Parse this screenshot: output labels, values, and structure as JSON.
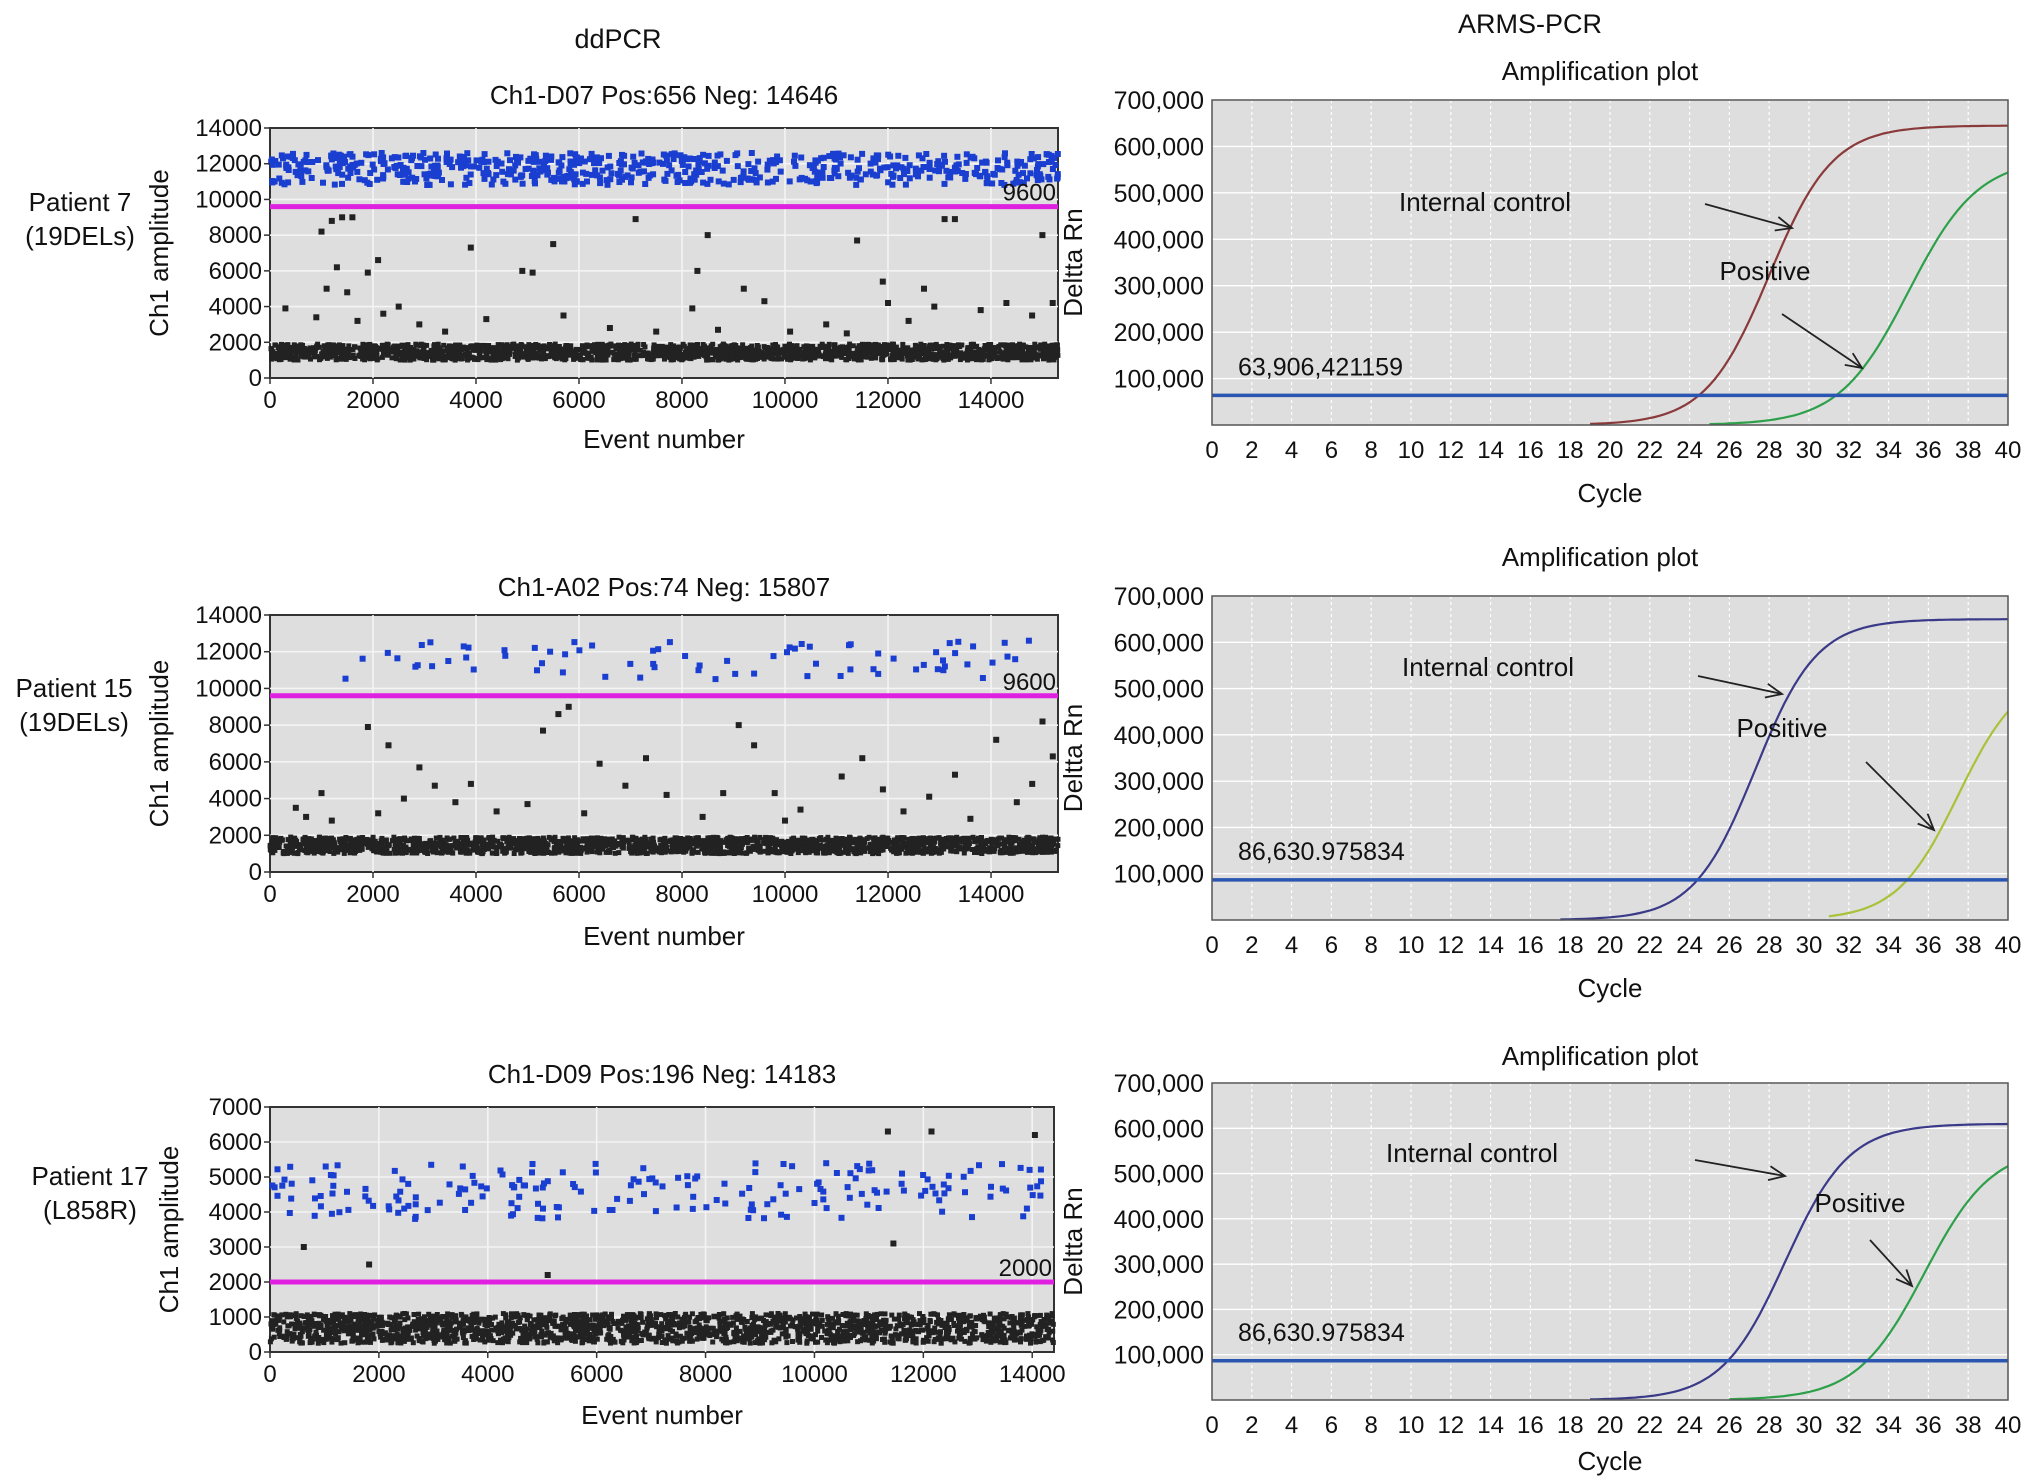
{
  "figure": {
    "left_heading": "ddPCR",
    "right_heading": "ARMS-PCR"
  },
  "colors": {
    "positive_droplet": "#1a3fd0",
    "negative_droplet": "#222222",
    "threshold_ddpcr": "#e020e0",
    "threshold_arms": "#2a55b0",
    "plot_bg": "#dedede",
    "ic_curves": [
      "#8a3a3a",
      "#3a3a88",
      "#3a3a88"
    ],
    "positive_curves": [
      "#2ea04a",
      "#a8c23a",
      "#2ea04a"
    ]
  },
  "chart_data": [
    {
      "type": "scatter",
      "title": "Ch1-D07 Pos:656 Neg: 14646",
      "patient_label": [
        "Patient 7",
        "(19DELs)"
      ],
      "xlabel": "Event number",
      "ylabel": "Ch1 amplitude",
      "xlim": [
        0,
        15302
      ],
      "ylim": [
        0,
        14000
      ],
      "xticks": [
        0,
        2000,
        4000,
        6000,
        8000,
        10000,
        12000,
        14000
      ],
      "yticks": [
        0,
        2000,
        4000,
        6000,
        8000,
        10000,
        12000,
        14000
      ],
      "threshold": 9600,
      "threshold_label": "9600",
      "positive_count": 656,
      "negative_count": 14646,
      "positive_band": [
        10800,
        12600
      ],
      "negative_band": [
        1000,
        1900
      ],
      "rain_points": [
        [
          300,
          3900
        ],
        [
          900,
          3400
        ],
        [
          1000,
          8200
        ],
        [
          1100,
          5000
        ],
        [
          1200,
          8800
        ],
        [
          1300,
          6200
        ],
        [
          1400,
          9000
        ],
        [
          1500,
          4800
        ],
        [
          1600,
          9000
        ],
        [
          1700,
          3200
        ],
        [
          1900,
          5900
        ],
        [
          2100,
          6600
        ],
        [
          2200,
          3600
        ],
        [
          2500,
          4000
        ],
        [
          2900,
          3000
        ],
        [
          3400,
          2600
        ],
        [
          3900,
          7300
        ],
        [
          4200,
          3300
        ],
        [
          4900,
          6000
        ],
        [
          5100,
          5900
        ],
        [
          5500,
          7500
        ],
        [
          5700,
          3500
        ],
        [
          6600,
          2800
        ],
        [
          7100,
          8900
        ],
        [
          7500,
          2600
        ],
        [
          8200,
          3900
        ],
        [
          8300,
          6000
        ],
        [
          8500,
          8000
        ],
        [
          8700,
          2700
        ],
        [
          9200,
          5000
        ],
        [
          9600,
          4300
        ],
        [
          10100,
          2600
        ],
        [
          10800,
          3000
        ],
        [
          11200,
          2500
        ],
        [
          11400,
          7700
        ],
        [
          11900,
          5400
        ],
        [
          12000,
          4200
        ],
        [
          12400,
          3200
        ],
        [
          12700,
          5000
        ],
        [
          12900,
          4000
        ],
        [
          13100,
          8900
        ],
        [
          13300,
          8900
        ],
        [
          13800,
          3800
        ],
        [
          14300,
          4200
        ],
        [
          14800,
          3500
        ],
        [
          15000,
          8000
        ],
        [
          15200,
          4200
        ]
      ]
    },
    {
      "type": "scatter",
      "title": "Ch1-A02 Pos:74 Neg: 15807",
      "patient_label": [
        "Patient 15",
        "(19DELs)"
      ],
      "xlabel": "Event number",
      "ylabel": "Ch1 amplitude",
      "xlim": [
        0,
        15300
      ],
      "ylim": [
        0,
        14000
      ],
      "xticks": [
        0,
        2000,
        4000,
        6000,
        8000,
        10000,
        12000,
        14000
      ],
      "yticks": [
        0,
        2000,
        4000,
        6000,
        8000,
        10000,
        12000,
        14000
      ],
      "threshold": 9600,
      "threshold_label": "9600",
      "positive_count": 74,
      "negative_count": 15807,
      "positive_band": [
        10500,
        12600
      ],
      "negative_band": [
        1000,
        1900
      ],
      "rain_points": [
        [
          500,
          3500
        ],
        [
          700,
          3000
        ],
        [
          1000,
          4300
        ],
        [
          1200,
          2800
        ],
        [
          1900,
          7900
        ],
        [
          2100,
          3200
        ],
        [
          2300,
          6900
        ],
        [
          2600,
          4000
        ],
        [
          2900,
          5700
        ],
        [
          3200,
          4700
        ],
        [
          3600,
          3800
        ],
        [
          3900,
          4800
        ],
        [
          4400,
          3300
        ],
        [
          5000,
          3700
        ],
        [
          5300,
          7700
        ],
        [
          5600,
          8600
        ],
        [
          5800,
          9000
        ],
        [
          6100,
          3200
        ],
        [
          6400,
          5900
        ],
        [
          6900,
          4700
        ],
        [
          7300,
          6200
        ],
        [
          7700,
          4200
        ],
        [
          8400,
          3000
        ],
        [
          8800,
          4300
        ],
        [
          9100,
          8000
        ],
        [
          9400,
          6900
        ],
        [
          9800,
          4300
        ],
        [
          10000,
          2800
        ],
        [
          10300,
          3400
        ],
        [
          11100,
          5200
        ],
        [
          11500,
          6200
        ],
        [
          11900,
          4500
        ],
        [
          12300,
          3300
        ],
        [
          12800,
          4100
        ],
        [
          13300,
          5300
        ],
        [
          13600,
          2900
        ],
        [
          14100,
          7200
        ],
        [
          14500,
          3800
        ],
        [
          14800,
          4800
        ],
        [
          15000,
          8200
        ],
        [
          15200,
          6300
        ]
      ]
    },
    {
      "type": "scatter",
      "title": "Ch1-D09 Pos:196 Neg: 14183",
      "patient_label": [
        "Patient 17",
        "(L858R)"
      ],
      "xlabel": "Event number",
      "ylabel": "Ch1 amplitude",
      "xlim": [
        0,
        14400
      ],
      "ylim": [
        0,
        7000
      ],
      "xticks": [
        0,
        2000,
        4000,
        6000,
        8000,
        10000,
        12000,
        14000
      ],
      "yticks": [
        0,
        1000,
        2000,
        3000,
        4000,
        5000,
        6000,
        7000
      ],
      "threshold": 2000,
      "threshold_label": "2000",
      "positive_count": 196,
      "negative_count": 14183,
      "positive_band": [
        3800,
        5400
      ],
      "negative_band": [
        250,
        1100
      ],
      "rain_points": [
        [
          620,
          3000
        ],
        [
          1820,
          2500
        ],
        [
          5100,
          2200
        ],
        [
          11350,
          6300
        ],
        [
          11450,
          3100
        ],
        [
          12150,
          6300
        ],
        [
          14050,
          6200
        ]
      ]
    },
    {
      "type": "line",
      "title": "Amplification plot",
      "xlabel": "Cycle",
      "ylabel": "Deltta Rn",
      "xlim": [
        0,
        40
      ],
      "ylim": [
        0,
        700000
      ],
      "xticks": [
        0,
        2,
        4,
        6,
        8,
        10,
        12,
        14,
        16,
        18,
        20,
        22,
        24,
        26,
        28,
        30,
        32,
        34,
        36,
        38,
        40
      ],
      "yticks": [
        100000,
        200000,
        300000,
        400000,
        500000,
        600000,
        700000
      ],
      "ytick_labels": [
        "100,000",
        "200,000",
        "300,000",
        "400,000",
        "500,000",
        "600,000",
        "700,000"
      ],
      "threshold": 63906,
      "threshold_label": "63,906,421159",
      "series": [
        {
          "label": "Internal control",
          "plateau": 645000,
          "midpoint": 28.0,
          "slope": 1.6,
          "start": 19
        },
        {
          "label": "Positive",
          "plateau": 575000,
          "midpoint": 35.0,
          "slope": 1.75,
          "start": 25
        }
      ]
    },
    {
      "type": "line",
      "title": "Amplification plot",
      "xlabel": "Cycle",
      "ylabel": "Deltta Rn",
      "xlim": [
        0,
        40
      ],
      "ylim": [
        0,
        700000
      ],
      "xticks": [
        0,
        2,
        4,
        6,
        8,
        10,
        12,
        14,
        16,
        18,
        20,
        22,
        24,
        26,
        28,
        30,
        32,
        34,
        36,
        38,
        40
      ],
      "yticks": [
        100000,
        200000,
        300000,
        400000,
        500000,
        600000,
        700000
      ],
      "ytick_labels": [
        "100,000",
        "200,000",
        "300,000",
        "400,000",
        "500,000",
        "600,000",
        "700,000"
      ],
      "threshold": 86630.975834,
      "threshold_label": "86,630.975834",
      "series": [
        {
          "label": "Internal control",
          "plateau": 650000,
          "midpoint": 27.3,
          "slope": 1.55,
          "start": 17.5
        },
        {
          "label": "Positive",
          "plateau": 540000,
          "midpoint": 37.5,
          "slope": 1.55,
          "start": 31
        }
      ]
    },
    {
      "type": "line",
      "title": "Amplification plot",
      "xlabel": "Cycle",
      "ylabel": "Deltta Rn",
      "xlim": [
        0,
        40
      ],
      "ylim": [
        0,
        700000
      ],
      "xticks": [
        0,
        2,
        4,
        6,
        8,
        10,
        12,
        14,
        16,
        18,
        20,
        22,
        24,
        26,
        28,
        30,
        32,
        34,
        36,
        38,
        40
      ],
      "yticks": [
        100000,
        200000,
        300000,
        400000,
        500000,
        600000,
        700000
      ],
      "ytick_labels": [
        "100,000",
        "200,000",
        "300,000",
        "400,000",
        "500,000",
        "600,000",
        "700,000"
      ],
      "threshold": 86630.975834,
      "threshold_label": "86,630.975834",
      "series": [
        {
          "label": "Internal control",
          "plateau": 610000,
          "midpoint": 28.8,
          "slope": 1.6,
          "start": 19
        },
        {
          "label": "Positive",
          "plateau": 560000,
          "midpoint": 35.8,
          "slope": 1.7,
          "start": 26
        }
      ]
    }
  ]
}
